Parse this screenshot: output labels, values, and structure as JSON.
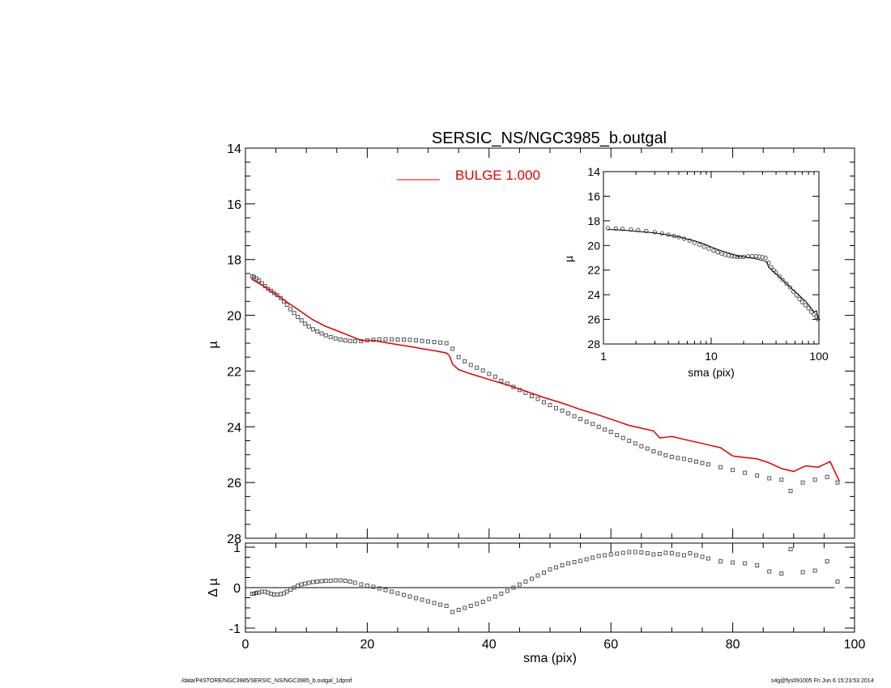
{
  "chart_data": [
    {
      "id": "main",
      "type": "scatter",
      "title": "SERSIC_NS/NGC3985_b.outgal",
      "xlabel": "",
      "ylabel": "µ",
      "xlim": [
        0,
        100
      ],
      "ylim": [
        28,
        14
      ],
      "y_reversed": true,
      "yticks": [
        14,
        16,
        18,
        20,
        22,
        24,
        26,
        28
      ],
      "legend": {
        "position": "top-center",
        "label": "BULGE  1.000",
        "color": "#e00000"
      },
      "series": [
        {
          "kind": "points",
          "marker": "open-square",
          "color": "#555555",
          "x": [
            1.1,
            1.4,
            1.8,
            2.2,
            2.7,
            3.2,
            3.7,
            4.2,
            4.7,
            5.2,
            5.8,
            6.3,
            6.8,
            7.4,
            8.0,
            8.6,
            9.2,
            9.8,
            10.4,
            11.1,
            11.8,
            12.5,
            13.2,
            14.0,
            14.8,
            15.6,
            16.4,
            17.2,
            18.0,
            19.0,
            20.0,
            21.0,
            22.0,
            23.0,
            24.0,
            25.0,
            26.0,
            27.0,
            28.0,
            29.0,
            30.0,
            31.0,
            32.0,
            33.0,
            34.0,
            35.0,
            36.0,
            37.0,
            38.0,
            39.0,
            40.0,
            41.0,
            42.0,
            43.0,
            44.0,
            45.0,
            46.0,
            47.0,
            48.0,
            49.0,
            50.0,
            51.0,
            52.0,
            53.0,
            54.0,
            55.0,
            56.0,
            57.0,
            58.0,
            59.0,
            60.0,
            61.0,
            62.0,
            63.0,
            64.0,
            65.0,
            66.0,
            67.0,
            68.0,
            69.0,
            70.0,
            71.0,
            72.0,
            73.0,
            74.0,
            75.0,
            76.0,
            78.0,
            80.0,
            82.0,
            84.0,
            86.0,
            88.0,
            89.5,
            91.5,
            93.5,
            95.5,
            97.2
          ],
          "y": [
            18.6,
            18.62,
            18.68,
            18.75,
            18.85,
            18.95,
            19.05,
            19.12,
            19.2,
            19.27,
            19.38,
            19.5,
            19.62,
            19.78,
            19.92,
            20.06,
            20.18,
            20.3,
            20.4,
            20.5,
            20.58,
            20.65,
            20.72,
            20.78,
            20.83,
            20.87,
            20.9,
            20.92,
            20.93,
            20.93,
            20.9,
            20.88,
            20.86,
            20.86,
            20.86,
            20.87,
            20.87,
            20.88,
            20.9,
            20.92,
            20.94,
            20.96,
            20.98,
            21.0,
            21.2,
            21.5,
            21.65,
            21.78,
            21.88,
            21.98,
            22.1,
            22.2,
            22.35,
            22.45,
            22.57,
            22.68,
            22.78,
            22.9,
            23.0,
            23.12,
            23.22,
            23.33,
            23.42,
            23.52,
            23.62,
            23.72,
            23.82,
            23.9,
            24.0,
            24.1,
            24.18,
            24.3,
            24.4,
            24.5,
            24.6,
            24.7,
            24.78,
            24.88,
            24.95,
            25.02,
            25.08,
            25.12,
            25.15,
            25.2,
            25.25,
            25.3,
            25.35,
            25.45,
            25.55,
            25.65,
            25.75,
            25.85,
            25.9,
            26.3,
            26.0,
            25.9,
            25.8,
            26.0
          ]
        },
        {
          "kind": "line",
          "color": "#e00000",
          "x": [
            1,
            3,
            5,
            7,
            9,
            11,
            13,
            15,
            17,
            19,
            21,
            23,
            25,
            27,
            29,
            31,
            33,
            33.5,
            34,
            35,
            37,
            40,
            43,
            46,
            49,
            52,
            55,
            58,
            61,
            63,
            65,
            67,
            68,
            70,
            72,
            74,
            76,
            78,
            80,
            82,
            84,
            86,
            88,
            90,
            92,
            94,
            96,
            97.5
          ],
          "y": [
            18.7,
            18.95,
            19.25,
            19.55,
            19.85,
            20.15,
            20.38,
            20.55,
            20.72,
            20.9,
            20.9,
            20.98,
            21.05,
            21.12,
            21.2,
            21.27,
            21.35,
            21.45,
            21.75,
            21.95,
            22.1,
            22.3,
            22.5,
            22.72,
            22.95,
            23.15,
            23.38,
            23.58,
            23.8,
            23.95,
            24.05,
            24.15,
            24.4,
            24.35,
            24.45,
            24.55,
            24.65,
            24.75,
            25.05,
            25.1,
            25.15,
            25.3,
            25.5,
            25.6,
            25.4,
            25.45,
            25.25,
            25.95
          ]
        }
      ]
    },
    {
      "id": "residual",
      "type": "scatter",
      "xlabel": "sma (pix)",
      "ylabel": "Δ µ",
      "xlim": [
        0,
        100
      ],
      "ylim": [
        -1.1,
        1.1
      ],
      "xticks": [
        0,
        20,
        40,
        60,
        80,
        100
      ],
      "yticks": [
        -1,
        0,
        1
      ],
      "baseline": 0,
      "series": [
        {
          "kind": "points",
          "marker": "open-square",
          "color": "#555555",
          "x": [
            1.1,
            1.4,
            1.8,
            2.2,
            2.7,
            3.2,
            3.7,
            4.2,
            4.7,
            5.2,
            5.8,
            6.3,
            6.8,
            7.4,
            8.0,
            8.6,
            9.2,
            9.8,
            10.4,
            11.1,
            11.8,
            12.5,
            13.2,
            14.0,
            14.8,
            15.6,
            16.4,
            17.2,
            18.0,
            19.0,
            20.0,
            21.0,
            22.0,
            23.0,
            24.0,
            25.0,
            26.0,
            27.0,
            28.0,
            29.0,
            30.0,
            31.0,
            32.0,
            33.0,
            34.0,
            35.0,
            36.0,
            37.0,
            38.0,
            39.0,
            40.0,
            41.0,
            42.0,
            43.0,
            44.0,
            45.0,
            46.0,
            47.0,
            48.0,
            49.0,
            50.0,
            51.0,
            52.0,
            53.0,
            54.0,
            55.0,
            56.0,
            57.0,
            58.0,
            59.0,
            60.0,
            61.0,
            62.0,
            63.0,
            64.0,
            65.0,
            66.0,
            67.0,
            68.0,
            69.0,
            70.0,
            71.0,
            72.0,
            73.0,
            74.0,
            75.0,
            76.0,
            78.0,
            80.0,
            82.0,
            84.0,
            86.0,
            88.0,
            89.5,
            91.5,
            93.5,
            95.5,
            97.2
          ],
          "y": [
            -0.15,
            -0.15,
            -0.13,
            -0.12,
            -0.1,
            -0.1,
            -0.12,
            -0.15,
            -0.17,
            -0.17,
            -0.16,
            -0.14,
            -0.1,
            -0.05,
            0.0,
            0.05,
            0.08,
            0.1,
            0.12,
            0.14,
            0.15,
            0.16,
            0.17,
            0.17,
            0.18,
            0.18,
            0.17,
            0.15,
            0.12,
            0.08,
            0.05,
            0.02,
            -0.02,
            -0.06,
            -0.1,
            -0.14,
            -0.18,
            -0.22,
            -0.26,
            -0.3,
            -0.34,
            -0.38,
            -0.42,
            -0.45,
            -0.6,
            -0.55,
            -0.5,
            -0.45,
            -0.4,
            -0.35,
            -0.28,
            -0.22,
            -0.15,
            -0.08,
            0.0,
            0.08,
            0.15,
            0.22,
            0.3,
            0.37,
            0.45,
            0.5,
            0.55,
            0.6,
            0.63,
            0.66,
            0.7,
            0.74,
            0.78,
            0.8,
            0.82,
            0.84,
            0.86,
            0.88,
            0.88,
            0.87,
            0.85,
            0.82,
            0.83,
            0.86,
            0.85,
            0.82,
            0.8,
            0.85,
            0.8,
            0.76,
            0.72,
            0.65,
            0.62,
            0.6,
            0.55,
            0.4,
            0.35,
            0.95,
            0.38,
            0.42,
            0.65,
            0.15
          ]
        }
      ]
    },
    {
      "id": "inset",
      "type": "scatter",
      "xlabel": "sma (pix)",
      "ylabel": "µ",
      "xscale": "log",
      "xlim": [
        1,
        100
      ],
      "xticks": [
        1,
        10,
        100
      ],
      "ylim": [
        28,
        14
      ],
      "y_reversed": true,
      "yticks": [
        14,
        16,
        18,
        20,
        22,
        24,
        26,
        28
      ],
      "series": [
        {
          "kind": "points",
          "marker": "open-circle",
          "color": "#555555",
          "x": [
            1.1,
            1.3,
            1.5,
            1.8,
            2.1,
            2.5,
            3.0,
            3.5,
            4.0,
            4.5,
            5.0,
            5.6,
            6.3,
            7.0,
            7.8,
            8.6,
            9.5,
            10.5,
            11.5,
            12.5,
            13.5,
            14.5,
            15.5,
            16.5,
            17.5,
            18.5,
            20,
            22,
            24,
            26,
            28,
            30,
            32,
            34,
            36,
            38,
            40,
            43,
            46,
            50,
            54,
            58,
            62,
            66,
            70,
            75,
            80,
            85,
            90,
            95,
            98
          ],
          "y": [
            18.6,
            18.62,
            18.65,
            18.7,
            18.75,
            18.82,
            18.92,
            19.02,
            19.12,
            19.22,
            19.32,
            19.45,
            19.6,
            19.78,
            19.95,
            20.1,
            20.26,
            20.42,
            20.55,
            20.66,
            20.75,
            20.82,
            20.87,
            20.9,
            20.92,
            20.93,
            20.92,
            20.88,
            20.86,
            20.87,
            20.9,
            20.95,
            21.0,
            21.4,
            21.75,
            22.0,
            22.2,
            22.5,
            22.8,
            23.1,
            23.4,
            23.75,
            24.05,
            24.35,
            24.6,
            24.85,
            25.1,
            25.4,
            25.6,
            25.8,
            26.0
          ]
        },
        {
          "kind": "line",
          "color": "#000000",
          "x": [
            1.1,
            1.5,
            2,
            3,
            4,
            5,
            6,
            7,
            8,
            9,
            10,
            12,
            14,
            16,
            18,
            20,
            22,
            25,
            28,
            31,
            33,
            34,
            36,
            40,
            45,
            50,
            55,
            60,
            65,
            70,
            75,
            80,
            85,
            90,
            95,
            98
          ],
          "y": [
            18.7,
            18.75,
            18.85,
            18.98,
            19.15,
            19.3,
            19.48,
            19.62,
            19.78,
            19.95,
            20.12,
            20.38,
            20.55,
            20.72,
            20.88,
            20.9,
            20.98,
            21.05,
            21.15,
            21.25,
            21.35,
            21.75,
            21.95,
            22.3,
            22.7,
            23.1,
            23.45,
            23.75,
            24.0,
            24.3,
            24.5,
            24.8,
            25.1,
            25.4,
            25.3,
            25.9
          ]
        }
      ]
    }
  ],
  "footer": {
    "left": "/data/P4STORE/NGC3985/SERSIC_NS/NGC3985_b.outgal_1dprof",
    "right": "s4g@fys091005  Fri Jun  6 15:23:53 2014"
  }
}
